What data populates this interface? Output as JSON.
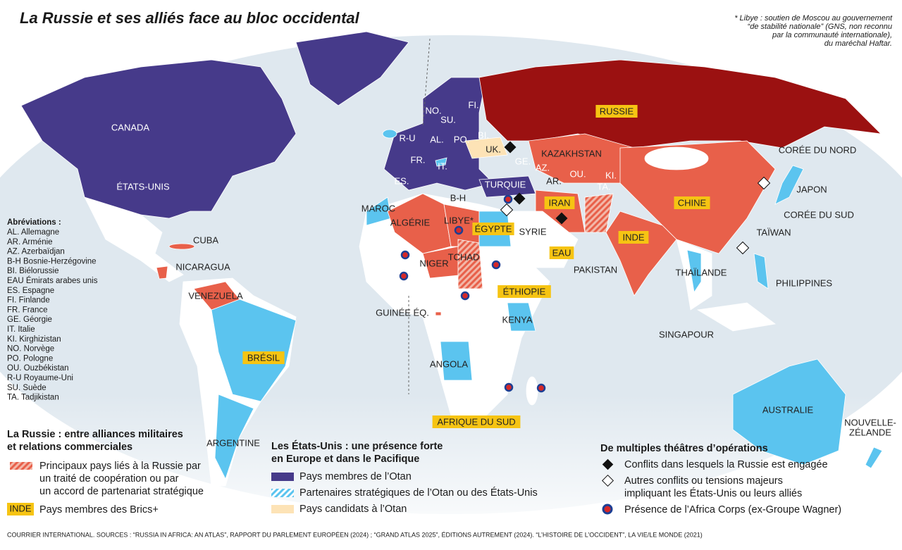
{
  "title": "La Russie et ses alliés face au bloc occidental",
  "note": [
    "* Libye : soutien de Moscou au gouvernement",
    "“de stabilité nationale” (GNS, non reconnu",
    "par la communauté internationale),",
    "du maréchal Haftar."
  ],
  "map_labels": [
    "CANADA",
    "ÉTATS-UNIS",
    "CUBA",
    "NICARAGUA",
    "VENEZUELA",
    "ARGENTINE",
    "MAROC",
    "ALGÉRIE",
    "LIBYE*",
    "NIGER",
    "TCHAD",
    "GUINÉE ÉQ.",
    "KENYA",
    "ANGOLA",
    "SYRIE",
    "PAKISTAN",
    "KAZAKHSTAN",
    "OU.",
    "KI.",
    "TA.",
    "AR.",
    "AZ.",
    "GE.",
    "UK.",
    "BI.",
    "PO.",
    "AL.",
    "FR.",
    "IT.",
    "ES.",
    "R-U",
    "NO.",
    "SU.",
    "FI.",
    "B-H",
    "TURQUIE",
    "CORÉE DU NORD",
    "JAPON",
    "CORÉE DU SUD",
    "TAÏWAN",
    "THAÏLANDE",
    "PHILIPPINES",
    "SINGAPOUR",
    "AUSTRALIE",
    "NOUVELLE-",
    "ZÉLANDE"
  ],
  "brics_labels": [
    "RUSSIE",
    "CHINE",
    "INDE",
    "IRAN",
    "EAU",
    "ÉGYPTE",
    "ÉTHIOPIE",
    "BRÉSIL",
    "AFRIQUE DU SUD"
  ],
  "abbreviations": {
    "title": "Abréviations :",
    "items": [
      "AL. Allemagne",
      "AR. Arménie",
      "AZ. Azerbaïdjan",
      "B-H Bosnie-Herzégovine",
      "BI. Biélorussie",
      "EAU Émirats arabes unis",
      "ES. Espagne",
      "FI. Finlande",
      "FR. France",
      "GE. Géorgie",
      "IT. Italie",
      "KI. Kirghizistan",
      "NO. Norvège",
      "PO. Pologne",
      "OU. Ouzbékistan",
      "R-U Royaume-Uni",
      "SU. Suède",
      "TA. Tadjikistan"
    ]
  },
  "legend_russia": {
    "title": [
      "La Russie : entre alliances militaires",
      "et relations commerciales"
    ],
    "allies": [
      "Principaux pays liés à la Russie par",
      "un traité de coopération ou par",
      "un accord de partenariat stratégique"
    ],
    "brics_swatch": "INDE",
    "brics": "Pays membres des Brics+"
  },
  "legend_usa": {
    "title": [
      "Les États-Unis : une présence forte",
      "en Europe et dans le Pacifique"
    ],
    "items": [
      "Pays membres de l’Otan",
      "Partenaires stratégiques de l’Otan ou des États-Unis",
      "Pays candidats à l’Otan"
    ]
  },
  "legend_ops": {
    "title": "De multiples théâtres d’opérations",
    "russia_conflicts": "Conflits dans lesquels la Russie est engagée",
    "other_conflicts": [
      "Autres conflits ou tensions majeurs",
      "impliquant les États-Unis ou leurs alliés"
    ],
    "africa_corps": "Présence de l’Africa Corps (ex-Groupe Wagner)"
  },
  "source": "COURRIER INTERNATIONAL. SOURCES : “RUSSIA IN AFRICA: AN ATLAS”, RAPPORT DU PARLEMENT EUROPÉEN (2024) ; “GRAND ATLAS 2025”, ÉDITIONS AUTREMENT (2024). “L’HISTOIRE DE L’OCCIDENT”, LA VIE/LE MONDE (2021)"
}
